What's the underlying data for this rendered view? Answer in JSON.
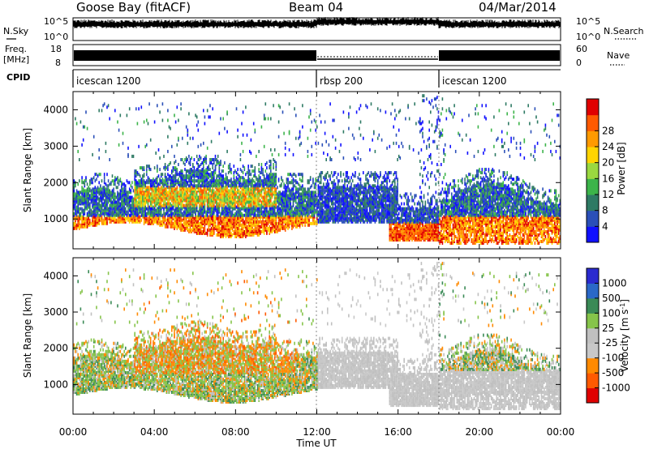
{
  "header": {
    "station": "Goose Bay (fitACF)",
    "beam": "Beam 04",
    "date": "04/Mar/2014"
  },
  "noise_panel": {
    "left_label": "N.Sky",
    "right_label": "N.Search",
    "left_ticks": [
      "10^5",
      "10^0"
    ],
    "right_ticks": [
      "10^5",
      "10^0"
    ]
  },
  "freq_panel": {
    "left_label_1": "Freq.",
    "left_label_2": "[MHz]",
    "right_label": "Nave",
    "left_ticks": [
      "18",
      "8"
    ],
    "right_ticks": [
      "60",
      "0"
    ]
  },
  "cpid_panel": {
    "label": "CPID",
    "segments": [
      "icescan 1200",
      "rbsp 200",
      "icescan 1200"
    ]
  },
  "colors": {
    "power": [
      "#1010ff",
      "#2a4fb8",
      "#2e7a64",
      "#3cb44a",
      "#9ad840",
      "#ffd400",
      "#ff9a00",
      "#ff5a00",
      "#e00000"
    ],
    "velocity": [
      "#2a2acf",
      "#2a68c8",
      "#3a8a56",
      "#86c44a",
      "#c0c0c0",
      "#c8c8c8",
      "#ff8a00",
      "#ff5a00",
      "#e00000"
    ]
  },
  "chart_data": [
    {
      "type": "heatmap",
      "title": "",
      "xlabel": "",
      "ylabel": "Slant Range [km]",
      "x_ticks": [
        "00:00",
        "04:00",
        "08:00",
        "12:00",
        "16:00",
        "20:00",
        "00:00"
      ],
      "y_ticks": [
        "1000",
        "2000",
        "3000",
        "4000"
      ],
      "xlim_hours": [
        0,
        24
      ],
      "ylim_km": [
        180,
        4500
      ],
      "colorbar": {
        "label": "Power [dB]",
        "ticks": [
          "4",
          "8",
          "12",
          "16",
          "20",
          "24",
          "28"
        ],
        "range": [
          0,
          30
        ]
      }
    },
    {
      "type": "heatmap",
      "title": "",
      "xlabel": "Time UT",
      "ylabel": "Slant Range [km]",
      "x_ticks": [
        "00:00",
        "04:00",
        "08:00",
        "12:00",
        "16:00",
        "20:00",
        "00:00"
      ],
      "y_ticks": [
        "1000",
        "2000",
        "3000",
        "4000"
      ],
      "xlim_hours": [
        0,
        24
      ],
      "ylim_km": [
        180,
        4500
      ],
      "colorbar": {
        "label": "Velocity [m s^-1]",
        "ticks": [
          "1000",
          "500",
          "100",
          "25",
          "-25",
          "-100",
          "-500",
          "-1000"
        ],
        "range": [
          -1000,
          1000
        ]
      }
    }
  ]
}
